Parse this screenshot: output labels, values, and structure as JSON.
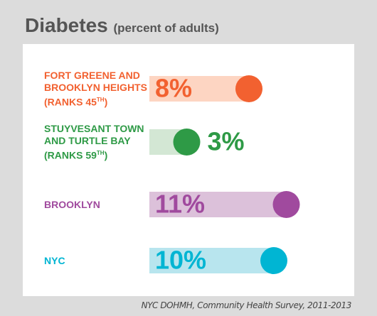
{
  "chart_data": {
    "type": "bar",
    "orientation": "horizontal",
    "title": "Diabetes",
    "subtitle": "(percent of adults)",
    "categories": [
      "FORT GREENE AND BROOKLYN HEIGHTS",
      "STUYVESANT TOWN AND TURTLE BAY",
      "BROOKLYN",
      "NYC"
    ],
    "ranks": [
      "(RANKS 45TH)",
      "(RANKS 59TH)",
      null,
      null
    ],
    "values": [
      8,
      3,
      11,
      10
    ],
    "value_labels": [
      "8%",
      "3%",
      "11%",
      "10%"
    ],
    "colors": [
      "#f26130",
      "#2e9a46",
      "#a04a9e",
      "#00b5d3"
    ],
    "light_colors": [
      "#fdd5c2",
      "#d3e7d4",
      "#dcc1da",
      "#b8e5ee"
    ],
    "xlim": [
      0,
      12
    ],
    "source": "NYC DOHMH, Community Health Survey, 2011-2013"
  }
}
